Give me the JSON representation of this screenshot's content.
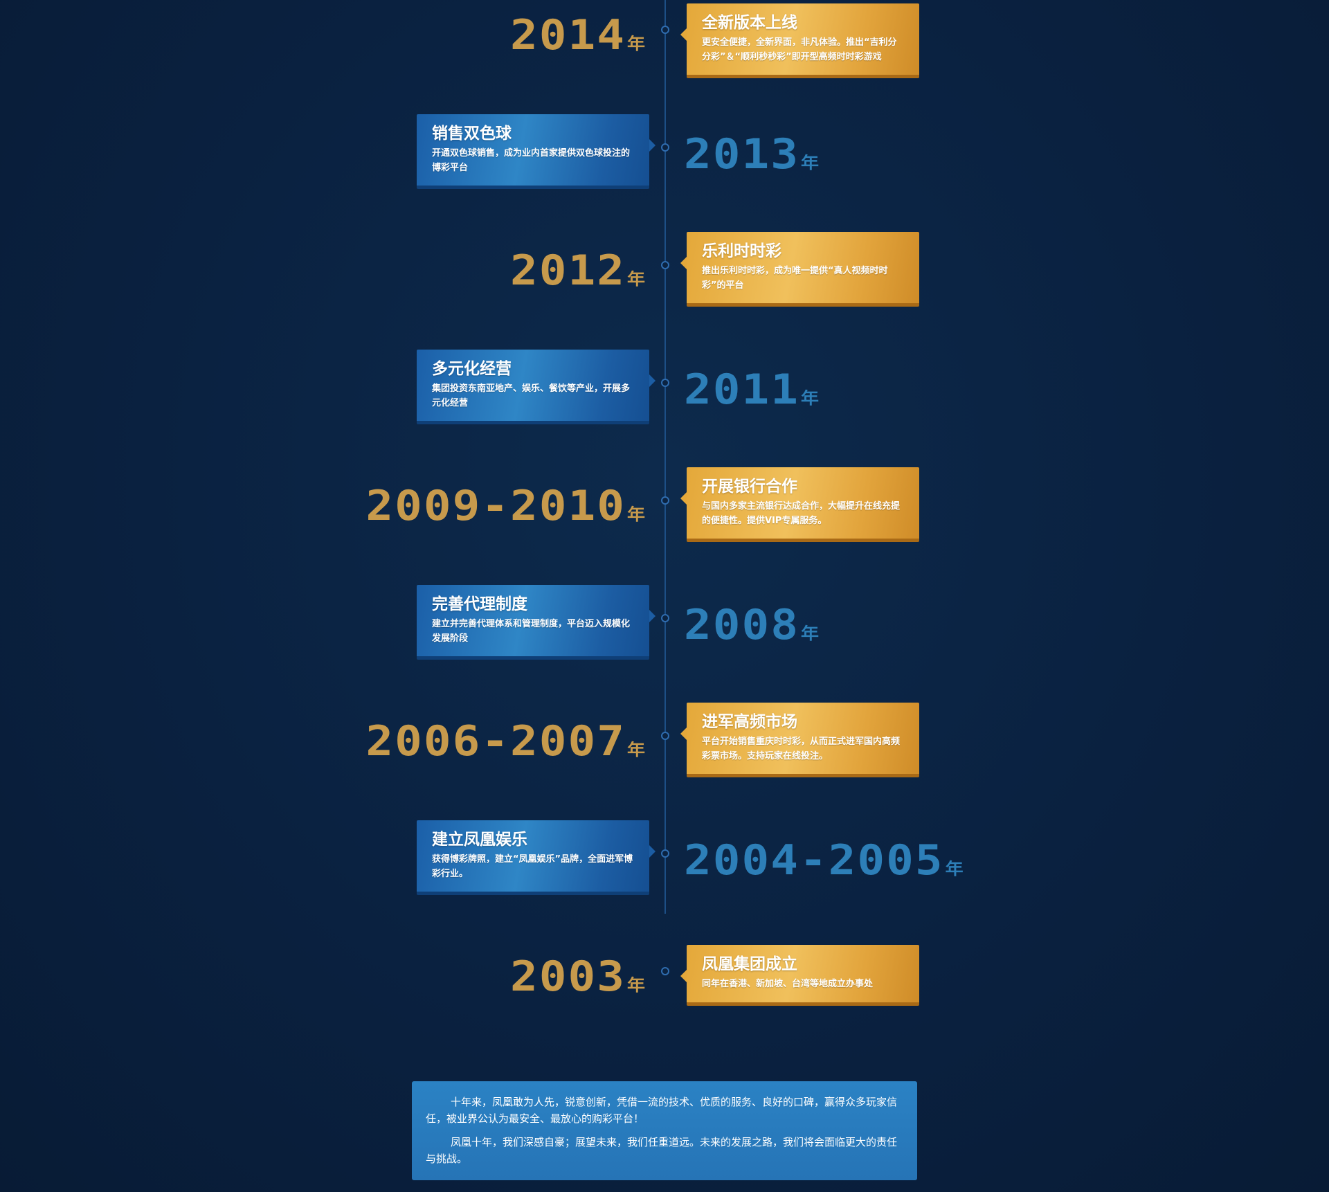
{
  "events": [
    {
      "year": "2014",
      "suffix": "年",
      "title": "全新版本上线",
      "desc": "更安全便捷，全新界面，非凡体验。推出“吉利分分彩”＆“顺利秒秒彩”即开型高频时时彩游戏"
    },
    {
      "year": "2013",
      "suffix": "年",
      "title": "销售双色球",
      "desc": "开通双色球销售，成为业内首家提供双色球投注的博彩平台"
    },
    {
      "year": "2012",
      "suffix": "年",
      "title": "乐利时时彩",
      "desc": "推出乐利时时彩，成为唯一提供“真人视频时时彩”的平台"
    },
    {
      "year": "2011",
      "suffix": "年",
      "title": "多元化经营",
      "desc": "集团投资东南亚地产、娱乐、餐饮等产业，开展多元化经营"
    },
    {
      "year": "2009-2010",
      "suffix": "年",
      "title": "开展银行合作",
      "desc": "与国内多家主流银行达成合作，大幅提升在线充提的便捷性。提供VIP专属服务。"
    },
    {
      "year": "2008",
      "suffix": "年",
      "title": "完善代理制度",
      "desc": "建立并完善代理体系和管理制度，平台迈入规模化发展阶段"
    },
    {
      "year": "2006-2007",
      "suffix": "年",
      "title": "进军高频市场",
      "desc": "平台开始销售重庆时时彩，从而正式进军国内高频彩票市场。支持玩家在线投注。"
    },
    {
      "year": "2004-2005",
      "suffix": "年",
      "title": "建立凤凰娱乐",
      "desc": "获得博彩牌照，建立“凤凰娱乐”品牌，全面进军博彩行业。"
    },
    {
      "year": "2003",
      "suffix": "年",
      "title": "凤凰集团成立",
      "desc": "同年在香港、新加坡、台湾等地成立办事处"
    }
  ],
  "summary": {
    "p1": "十年来，凤凰敢为人先，锐意创新，凭借一流的技术、优质的服务、良好的口碑，赢得众多玩家信任，被业界公认为最安全、最放心的购彩平台！",
    "p2": "凤凰十年，我们深感自豪；展望未来，我们任重道远。未来的发展之路，我们将会面临更大的责任与挑战。"
  },
  "colors": {
    "gold": "#e4a83a",
    "blue": "#1c5da3",
    "year_gold": "#c79a4c",
    "year_blue": "#2d7fb8",
    "background": "#0b2341"
  }
}
